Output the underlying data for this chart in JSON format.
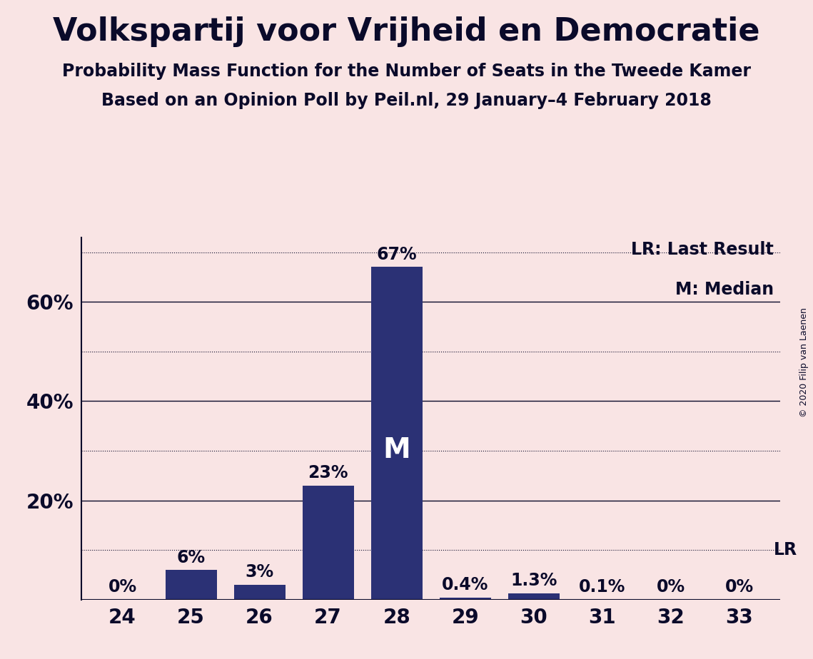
{
  "title": "Volkspartij voor Vrijheid en Democratie",
  "subtitle1": "Probability Mass Function for the Number of Seats in the Tweede Kamer",
  "subtitle2": "Based on an Opinion Poll by Peil.nl, 29 January–4 February 2018",
  "copyright": "© 2020 Filip van Laenen",
  "categories": [
    24,
    25,
    26,
    27,
    28,
    29,
    30,
    31,
    32,
    33
  ],
  "values": [
    0.0,
    6.0,
    3.0,
    23.0,
    67.0,
    0.4,
    1.3,
    0.1,
    0.0,
    0.0
  ],
  "labels": [
    "0%",
    "6%",
    "3%",
    "23%",
    "67%",
    "0.4%",
    "1.3%",
    "0.1%",
    "0%",
    "0%"
  ],
  "bar_color": "#2b3175",
  "background_color": "#f9e4e4",
  "title_color": "#0a0a2a",
  "median_bar": 28,
  "lr_line_value": 10.0,
  "ylim": [
    0,
    73
  ],
  "solid_gridlines": [
    20,
    40,
    60
  ],
  "dotted_gridlines": [
    10,
    30,
    50,
    70
  ],
  "ytick_positions": [
    20,
    40,
    60
  ],
  "ytick_labels": [
    "20%",
    "40%",
    "60%"
  ],
  "legend_lr": "LR: Last Result",
  "legend_m": "M: Median",
  "median_label_color": "#ffffff",
  "title_fontsize": 32,
  "subtitle_fontsize": 17,
  "tick_fontsize": 20,
  "label_fontsize": 17,
  "copyright_fontsize": 9
}
